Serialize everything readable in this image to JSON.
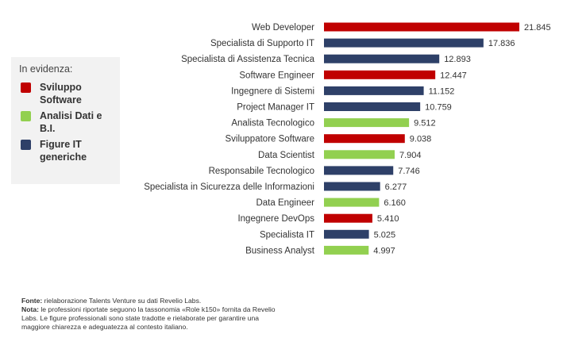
{
  "chart_data": {
    "type": "bar",
    "orientation": "horizontal",
    "categories": [
      "Web Developer",
      "Specialista di Supporto IT",
      "Specialista di Assistenza Tecnica",
      "Software Engineer",
      "Ingegnere di Sistemi",
      "Project Manager IT",
      "Analista Tecnologico",
      "Sviluppatore Software",
      "Data Scientist",
      "Responsabile Tecnologico",
      "Specialista in Sicurezza delle Informazioni",
      "Data Engineer",
      "Ingegnere DevOps",
      "Specialista IT",
      "Business Analyst"
    ],
    "values": [
      21845,
      17836,
      12893,
      12447,
      11152,
      10759,
      9512,
      9038,
      7904,
      7746,
      6277,
      6160,
      5410,
      5025,
      4997
    ],
    "value_labels": [
      "21.845",
      "17.836",
      "12.893",
      "12.447",
      "11.152",
      "10.759",
      "9.512",
      "9.038",
      "7.904",
      "7.746",
      "6.277",
      "6.160",
      "5.410",
      "5.025",
      "4.997"
    ],
    "groups": [
      "sviluppo",
      "generiche",
      "generiche",
      "sviluppo",
      "generiche",
      "generiche",
      "dati",
      "sviluppo",
      "dati",
      "generiche",
      "generiche",
      "dati",
      "sviluppo",
      "generiche",
      "dati"
    ],
    "xlim": [
      0,
      21845
    ]
  },
  "colors": {
    "sviluppo": "#c00000",
    "dati": "#92d050",
    "generiche": "#2e4068"
  },
  "legend": {
    "title": "In evidenza:",
    "items": [
      {
        "key": "sviluppo",
        "label": "Sviluppo Software"
      },
      {
        "key": "dati",
        "label": "Analisi Dati e B.I."
      },
      {
        "key": "generiche",
        "label": "Figure IT generiche"
      }
    ]
  },
  "note": {
    "fonte_label": "Fonte:",
    "fonte_text": " rielaborazione Talents Venture su dati Revelio Labs.",
    "nota_label": "Nota:",
    "nota_text": " le professioni riportate seguono la tassonomia «Role k150» fornita da Revelio Labs. Le figure professionali sono state tradotte e rielaborate per garantire una maggiore chiarezza e adeguatezza al contesto italiano."
  }
}
